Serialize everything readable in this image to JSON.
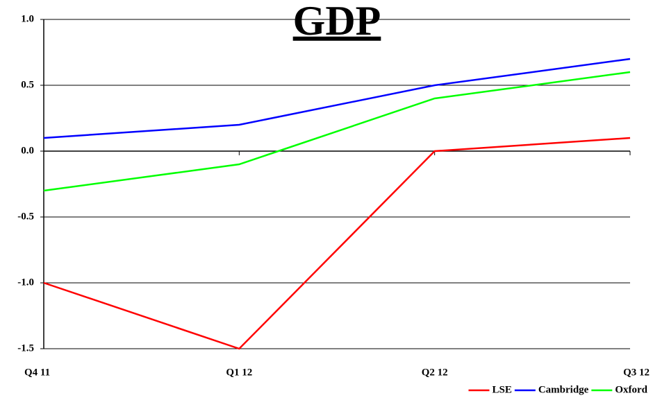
{
  "chart_data": {
    "type": "line",
    "title": "GDP",
    "categories": [
      "Q4 11",
      "Q1 12",
      "Q2 12",
      "Q3 12"
    ],
    "series": [
      {
        "name": "LSE",
        "color": "#ff0000",
        "values": [
          -1.0,
          -1.5,
          0.0,
          0.1
        ]
      },
      {
        "name": "Cambridge",
        "color": "#0000ff",
        "values": [
          0.1,
          0.2,
          0.5,
          0.7
        ]
      },
      {
        "name": "Oxford",
        "color": "#00ff00",
        "values": [
          -0.3,
          -0.1,
          0.4,
          0.6
        ]
      }
    ],
    "ylim": [
      -1.5,
      1.0
    ],
    "yticks": [
      {
        "value": 1.0,
        "label": "1.0"
      },
      0.5,
      {
        "value": 0,
        "label": "0.0"
      },
      -0.5,
      {
        "value": -1.0,
        "label": "-1.0"
      },
      -1.5
    ],
    "grid": true,
    "legend": "lower right"
  }
}
